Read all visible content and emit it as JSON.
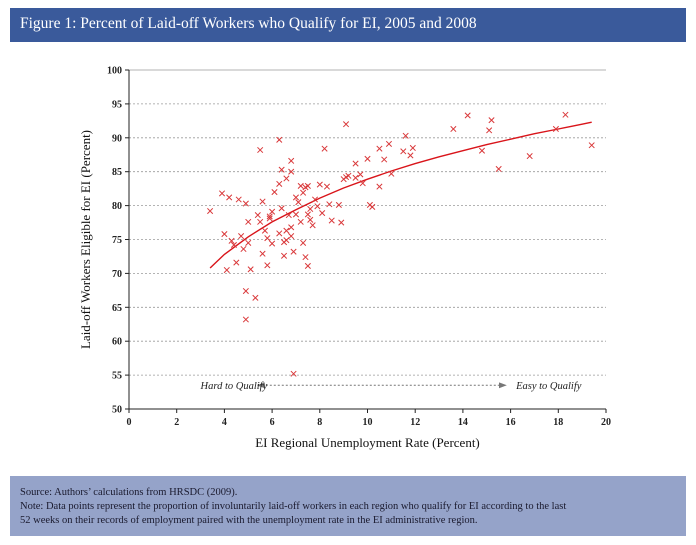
{
  "figure": {
    "title": "Figure 1: Percent of Laid-off Workers who Qualify for EI, 2005 and 2008",
    "source": "Source: Authors’ calculations from HRSDC (2009).",
    "note_line1": "Note: Data points represent the proportion of involuntarily laid-off workers in each region who qualify for EI according to the last",
    "note_line2": "52 weeks on their records of employment paired with the unemployment rate in the EI administrative region."
  },
  "colors": {
    "header_bg": "#3a5a9b",
    "footer_bg": "#95a3c9",
    "points": "#d9383a",
    "fit_line": "#d9141a"
  },
  "chart_data": {
    "type": "scatter",
    "title": "Figure 1: Percent of Laid-off Workers who Qualify for EI, 2005 and 2008",
    "xlabel": "EI Regional Unemployment Rate (Percent)",
    "ylabel": "Laid-off Workers Eligible for EI (Percent)",
    "xlim": [
      0,
      20
    ],
    "ylim": [
      50,
      100
    ],
    "xticks": [
      0,
      2,
      4,
      6,
      8,
      10,
      12,
      14,
      16,
      18,
      20
    ],
    "yticks": [
      50,
      55,
      60,
      65,
      70,
      75,
      80,
      85,
      90,
      95,
      100
    ],
    "grid": "horizontal dashed",
    "annotations": {
      "left": "Hard to Qualify",
      "right": "Easy to Qualify",
      "arrow_y": 53.5,
      "left_text_x": 3.0,
      "arrow_x_start": 5.4,
      "arrow_x_end": 15.8,
      "right_text_x": 17.6
    },
    "fit_line": {
      "name": "logarithmic fit",
      "x": [
        3.4,
        4,
        5,
        6,
        7,
        8,
        9,
        10,
        11,
        12,
        13,
        14,
        15,
        16,
        17,
        18,
        19,
        19.4
      ],
      "y": [
        70.8,
        72.8,
        75.4,
        77.6,
        79.4,
        81.1,
        82.6,
        83.9,
        85.1,
        86.2,
        87.2,
        88.1,
        89.0,
        89.8,
        90.6,
        91.3,
        92.0,
        92.3
      ]
    },
    "series": [
      {
        "name": "Regions",
        "marker": "x",
        "points": [
          [
            3.4,
            79.2
          ],
          [
            3.9,
            81.8
          ],
          [
            4.0,
            75.8
          ],
          [
            4.1,
            70.5
          ],
          [
            4.2,
            81.2
          ],
          [
            4.3,
            74.8
          ],
          [
            4.4,
            74.2
          ],
          [
            4.5,
            71.6
          ],
          [
            4.6,
            80.9
          ],
          [
            4.7,
            75.5
          ],
          [
            4.8,
            73.6
          ],
          [
            4.9,
            67.4
          ],
          [
            4.9,
            80.3
          ],
          [
            4.9,
            63.2
          ],
          [
            5.0,
            77.6
          ],
          [
            5.0,
            74.5
          ],
          [
            5.1,
            70.6
          ],
          [
            5.3,
            66.4
          ],
          [
            5.4,
            78.6
          ],
          [
            5.5,
            88.2
          ],
          [
            5.5,
            77.6
          ],
          [
            5.6,
            80.6
          ],
          [
            5.6,
            72.9
          ],
          [
            5.7,
            76.3
          ],
          [
            5.8,
            71.2
          ],
          [
            5.8,
            75.2
          ],
          [
            5.9,
            78.1
          ],
          [
            5.9,
            78.4
          ],
          [
            6.0,
            79.1
          ],
          [
            6.0,
            74.4
          ],
          [
            6.1,
            82.0
          ],
          [
            6.3,
            89.7
          ],
          [
            6.3,
            83.2
          ],
          [
            6.3,
            75.9
          ],
          [
            6.4,
            85.3
          ],
          [
            6.4,
            79.6
          ],
          [
            6.5,
            74.6
          ],
          [
            6.5,
            72.6
          ],
          [
            6.6,
            84.0
          ],
          [
            6.6,
            76.3
          ],
          [
            6.6,
            74.9
          ],
          [
            6.7,
            78.6
          ],
          [
            6.8,
            86.6
          ],
          [
            6.8,
            85.0
          ],
          [
            6.8,
            76.8
          ],
          [
            6.8,
            75.5
          ],
          [
            6.9,
            73.2
          ],
          [
            6.9,
            55.2
          ],
          [
            7.0,
            81.2
          ],
          [
            7.0,
            78.7
          ],
          [
            7.1,
            80.5
          ],
          [
            7.2,
            82.9
          ],
          [
            7.2,
            77.6
          ],
          [
            7.3,
            81.9
          ],
          [
            7.3,
            74.5
          ],
          [
            7.4,
            82.7
          ],
          [
            7.4,
            72.4
          ],
          [
            7.5,
            82.9
          ],
          [
            7.5,
            78.7
          ],
          [
            7.5,
            71.1
          ],
          [
            7.6,
            79.5
          ],
          [
            7.6,
            77.9
          ],
          [
            7.7,
            77.1
          ],
          [
            7.8,
            80.9
          ],
          [
            7.9,
            79.9
          ],
          [
            8.0,
            83.1
          ],
          [
            8.1,
            78.9
          ],
          [
            8.2,
            88.4
          ],
          [
            8.3,
            82.8
          ],
          [
            8.4,
            80.2
          ],
          [
            8.5,
            77.8
          ],
          [
            8.8,
            80.1
          ],
          [
            8.9,
            77.5
          ],
          [
            9.0,
            83.9
          ],
          [
            9.1,
            92.0
          ],
          [
            9.1,
            84.2
          ],
          [
            9.2,
            84.4
          ],
          [
            9.5,
            86.2
          ],
          [
            9.5,
            84.1
          ],
          [
            9.7,
            84.6
          ],
          [
            9.8,
            83.3
          ],
          [
            10.0,
            86.9
          ],
          [
            10.1,
            80.1
          ],
          [
            10.2,
            79.8
          ],
          [
            10.5,
            88.4
          ],
          [
            10.5,
            82.8
          ],
          [
            10.7,
            86.8
          ],
          [
            10.9,
            89.1
          ],
          [
            11.0,
            84.7
          ],
          [
            11.5,
            88.0
          ],
          [
            11.6,
            90.3
          ],
          [
            11.8,
            87.4
          ],
          [
            11.9,
            88.5
          ],
          [
            13.6,
            91.3
          ],
          [
            14.2,
            93.3
          ],
          [
            14.8,
            88.1
          ],
          [
            15.1,
            91.1
          ],
          [
            15.2,
            92.6
          ],
          [
            15.5,
            85.4
          ],
          [
            16.8,
            87.3
          ],
          [
            17.9,
            91.3
          ],
          [
            18.3,
            93.4
          ],
          [
            19.4,
            88.9
          ]
        ]
      }
    ]
  }
}
